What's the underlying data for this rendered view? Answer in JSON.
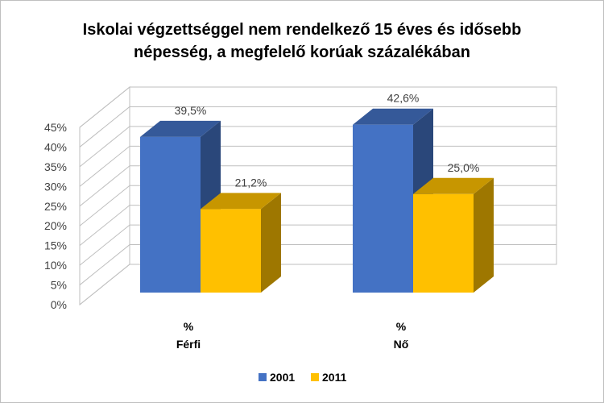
{
  "chart_data": {
    "type": "bar",
    "title_lines": [
      "Iskolai végzettséggel nem rendelkező 15 éves és idősebb",
      "népesség, a megfelelő korúak százalékában"
    ],
    "categories": [
      {
        "unit": "%",
        "name": "Férfi"
      },
      {
        "unit": "%",
        "name": "Nő"
      }
    ],
    "series": [
      {
        "name": "2001",
        "color": "#4472C4",
        "values": [
          39.5,
          42.6
        ],
        "labels": [
          "39,5%",
          "42,6%"
        ]
      },
      {
        "name": "2011",
        "color": "#FFC000",
        "values": [
          21.2,
          25.0
        ],
        "labels": [
          "21,2%",
          "25,0%"
        ]
      }
    ],
    "ylim": [
      0,
      45
    ],
    "y_ticks": [
      "0%",
      "5%",
      "10%",
      "15%",
      "20%",
      "25%",
      "30%",
      "35%",
      "40%",
      "45%"
    ],
    "grid": true,
    "style_3d": true,
    "legend_position": "bottom"
  }
}
